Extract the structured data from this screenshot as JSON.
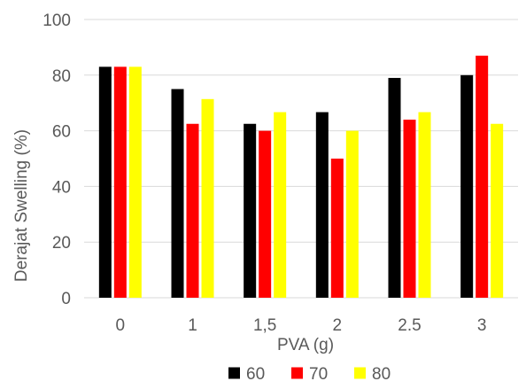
{
  "chart_data": {
    "type": "bar",
    "title": "",
    "xlabel": "PVA (g)",
    "ylabel": "Derajat Swelling (%)",
    "ylim": [
      0,
      100
    ],
    "yticks": [
      "0",
      "20",
      "40",
      "60",
      "80",
      "100"
    ],
    "categories": [
      "0",
      "1",
      "1,5",
      "2",
      "2.5",
      "3"
    ],
    "series": [
      {
        "name": "60",
        "color": "#000000",
        "values": [
          83,
          75,
          62.5,
          66.7,
          79,
          80
        ]
      },
      {
        "name": "70",
        "color": "#ff0000",
        "values": [
          83,
          62.5,
          60,
          50,
          64,
          87
        ]
      },
      {
        "name": "80",
        "color": "#ffff00",
        "values": [
          83,
          71.4,
          66.7,
          60,
          66.7,
          62.5
        ]
      }
    ],
    "grid": true,
    "legend": "bottom"
  }
}
